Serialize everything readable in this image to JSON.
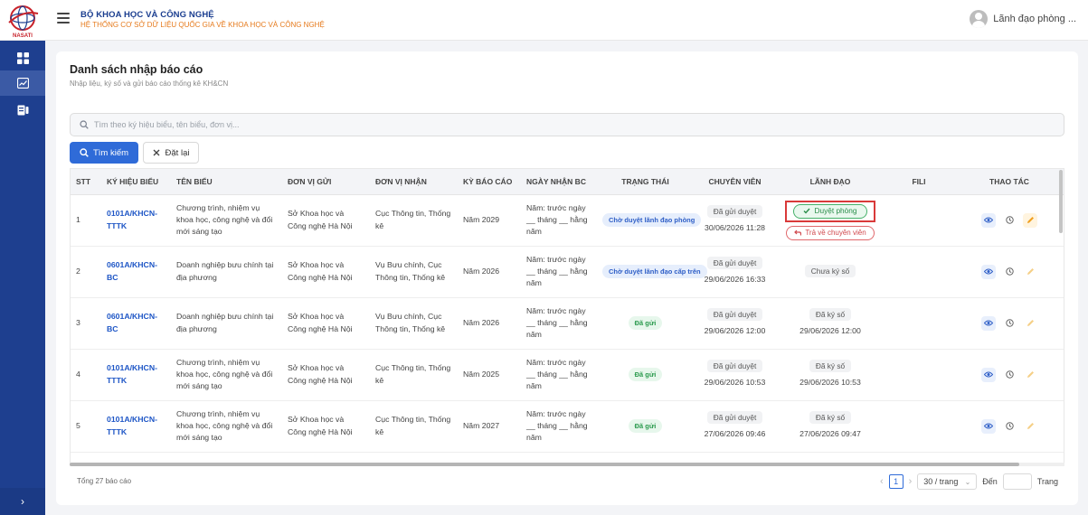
{
  "header": {
    "brand_title": "BỘ KHOA HỌC VÀ CÔNG NGHỆ",
    "brand_subtitle": "HỆ THỐNG CƠ SỞ DỮ LIỆU QUỐC GIA VỀ KHOA HỌC VÀ CÔNG NGHỆ",
    "logo_text": "NASATI",
    "user_name": "Lãnh đạo phòng ..."
  },
  "page": {
    "title": "Danh sách nhập báo cáo",
    "subtitle": "Nhập liệu, ký số và gửi báo cáo thống kê KH&CN"
  },
  "search": {
    "placeholder": "Tìm theo ký hiệu biểu, tên biểu, đơn vị...",
    "search_label": "Tìm kiếm",
    "reset_label": "Đặt lại"
  },
  "table": {
    "columns": [
      "STT",
      "KÝ HIỆU BIỂU",
      "TÊN BIỂU",
      "ĐƠN VỊ GỬI",
      "ĐƠN VỊ NHẬN",
      "KỲ BÁO CÁO",
      "NGÀY NHẬN BC",
      "TRẠNG THÁI",
      "CHUYÊN VIÊN",
      "LÃNH ĐẠO",
      "FILI",
      "THAO TÁC"
    ],
    "rows": [
      {
        "stt": "1",
        "code": "0101A/KHCN-TTTK",
        "name": "Chương trình, nhiệm vụ khoa học, công nghệ và đổi mới sáng tạo",
        "sender": "Sở Khoa học và Công nghệ Hà Nội",
        "receiver": "Cục Thông tin, Thống kê",
        "period": "Năm 2029",
        "received": "Năm: trước ngày __ tháng __ hằng năm",
        "status": "Chờ duyệt lãnh đạo phòng",
        "specialist_status": "Đã gửi duyệt",
        "specialist_date": "30/06/2026 11:28",
        "leader_approve": "Duyệt phòng",
        "leader_return": "Trả về chuyên viên"
      },
      {
        "stt": "2",
        "code": "0601A/KHCN-BC",
        "name": "Doanh nghiệp bưu chính tại địa phương",
        "sender": "Sở Khoa học và Công nghệ Hà Nội",
        "receiver": "Vụ Bưu chính, Cục Thông tin, Thống kê",
        "period": "Năm 2026",
        "received": "Năm: trước ngày __ tháng __ hằng năm",
        "status": "Chờ duyệt lãnh đạo cấp trên",
        "specialist_status": "Đã gửi duyệt",
        "specialist_date": "29/06/2026 16:33",
        "leader_status": "Chưa ký số",
        "leader_date": ""
      },
      {
        "stt": "3",
        "code": "0601A/KHCN-BC",
        "name": "Doanh nghiệp bưu chính tại địa phương",
        "sender": "Sở Khoa học và Công nghệ Hà Nội",
        "receiver": "Vụ Bưu chính, Cục Thông tin, Thống kê",
        "period": "Năm 2026",
        "received": "Năm: trước ngày __ tháng __ hằng năm",
        "status": "Đã gửi",
        "specialist_status": "Đã gửi duyệt",
        "specialist_date": "29/06/2026 12:00",
        "leader_status": "Đã ký số",
        "leader_date": "29/06/2026 12:00"
      },
      {
        "stt": "4",
        "code": "0101A/KHCN-TTTK",
        "name": "Chương trình, nhiệm vụ khoa học, công nghệ và đổi mới sáng tạo",
        "sender": "Sở Khoa học và Công nghệ Hà Nội",
        "receiver": "Cục Thông tin, Thống kê",
        "period": "Năm 2025",
        "received": "Năm: trước ngày __ tháng __ hằng năm",
        "status": "Đã gửi",
        "specialist_status": "Đã gửi duyệt",
        "specialist_date": "29/06/2026 10:53",
        "leader_status": "Đã ký số",
        "leader_date": "29/06/2026 10:53"
      },
      {
        "stt": "5",
        "code": "0101A/KHCN-TTTK",
        "name": "Chương trình, nhiệm vụ khoa học, công nghệ và đổi mới sáng tạo",
        "sender": "Sở Khoa học và Công nghệ Hà Nội",
        "receiver": "Cục Thông tin, Thống kê",
        "period": "Năm 2027",
        "received": "Năm: trước ngày __ tháng __ hằng năm",
        "status": "Đã gửi",
        "specialist_status": "Đã gửi duyệt",
        "specialist_date": "27/06/2026 09:46",
        "leader_status": "Đã ký số",
        "leader_date": "27/06/2026 09:47"
      }
    ]
  },
  "footer": {
    "total": "Tổng 27 báo cáo",
    "current_page": "1",
    "page_size": "30 / trang",
    "goto_label": "Đến",
    "page_label": "Trang"
  },
  "colors": {
    "sidebar": "#1e3f8f",
    "primary": "#2f6bd8",
    "highlight_border": "#d93a3a"
  }
}
